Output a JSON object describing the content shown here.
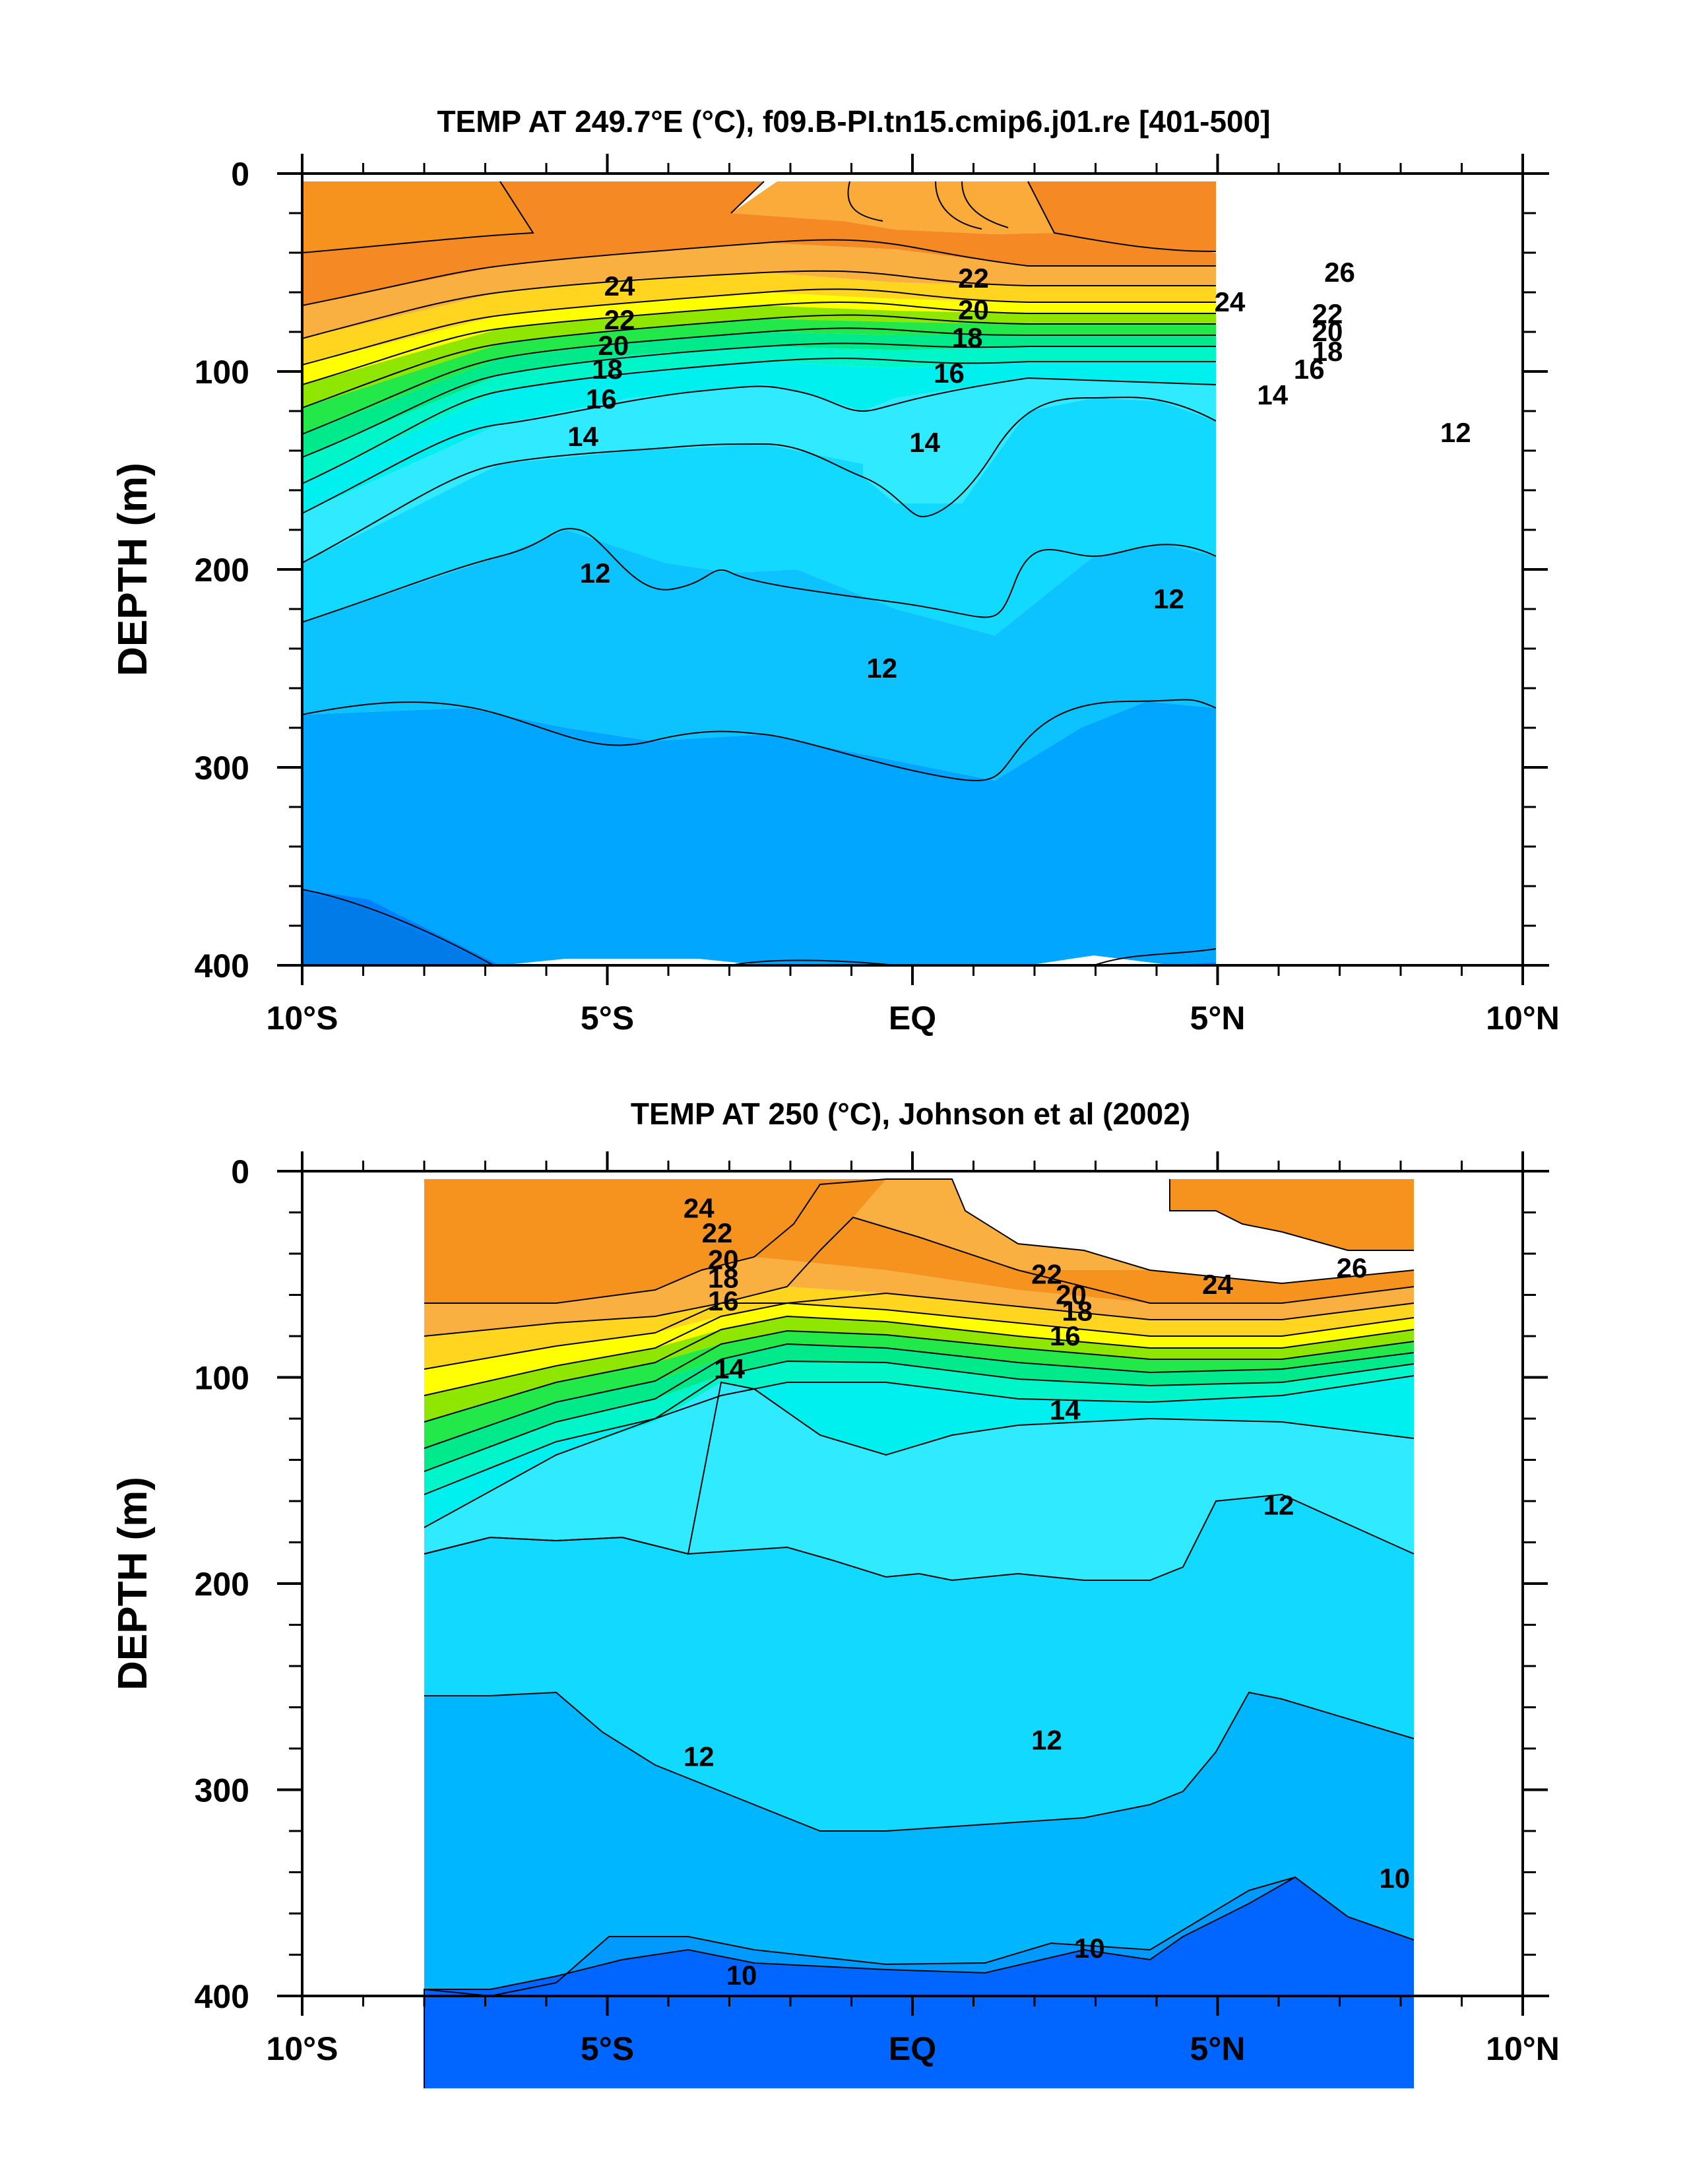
{
  "chart_data": [
    {
      "type": "heatmap",
      "title": "TEMP AT 249.7°E (°C), f09.B-PI.tn15.cmip6.j01.re [401-500]",
      "xlabel": "",
      "ylabel": "DEPTH (m)",
      "xlim": [
        -10,
        10
      ],
      "ylim": [
        400,
        0
      ],
      "x_ticks": [
        -10,
        -5,
        0,
        5,
        10
      ],
      "x_tick_labels": [
        "10°S",
        "5°S",
        "EQ",
        "5°N",
        "10°N"
      ],
      "y_ticks": [
        0,
        100,
        200,
        300,
        400
      ],
      "y_tick_labels": [
        "0",
        "100",
        "200",
        "300",
        "400"
      ],
      "contour_interval": 1,
      "grid": false,
      "isotherm_labels": [
        {
          "text": "24",
          "x": -4.8,
          "y": 57
        },
        {
          "text": "22",
          "x": -4.8,
          "y": 74
        },
        {
          "text": "20",
          "x": -4.9,
          "y": 87
        },
        {
          "text": "18",
          "x": -5.0,
          "y": 99
        },
        {
          "text": "16",
          "x": -5.1,
          "y": 114
        },
        {
          "text": "14",
          "x": -5.4,
          "y": 133
        },
        {
          "text": "22",
          "x": 1.0,
          "y": 53
        },
        {
          "text": "20",
          "x": 1.0,
          "y": 69
        },
        {
          "text": "18",
          "x": 0.9,
          "y": 83
        },
        {
          "text": "16",
          "x": 0.6,
          "y": 101
        },
        {
          "text": "14",
          "x": 0.2,
          "y": 136
        },
        {
          "text": "26",
          "x": 7.0,
          "y": 50
        },
        {
          "text": "24",
          "x": 5.2,
          "y": 65
        },
        {
          "text": "22",
          "x": 6.8,
          "y": 71
        },
        {
          "text": "20",
          "x": 6.8,
          "y": 80
        },
        {
          "text": "18",
          "x": 6.8,
          "y": 90
        },
        {
          "text": "16",
          "x": 6.5,
          "y": 99
        },
        {
          "text": "14",
          "x": 5.9,
          "y": 112
        },
        {
          "text": "12",
          "x": 8.9,
          "y": 131
        },
        {
          "text": "12",
          "x": -5.2,
          "y": 202
        },
        {
          "text": "12",
          "x": -0.5,
          "y": 250
        },
        {
          "text": "12",
          "x": 4.2,
          "y": 215
        }
      ]
    },
    {
      "type": "heatmap",
      "title": "TEMP AT 250 (°C), Johnson et al (2002)",
      "xlabel": "",
      "ylabel": "DEPTH (m)",
      "xlim": [
        -10,
        10
      ],
      "ylim": [
        400,
        0
      ],
      "x_ticks": [
        -10,
        -5,
        0,
        5,
        10
      ],
      "x_tick_labels": [
        "10°S",
        "5°S",
        "EQ",
        "5°N",
        "10°N"
      ],
      "y_ticks": [
        0,
        100,
        200,
        300,
        400
      ],
      "y_tick_labels": [
        "0",
        "100",
        "200",
        "300",
        "400"
      ],
      "data_xlim": [
        -8,
        8.2
      ],
      "contour_interval": 1,
      "grid": false,
      "isotherm_labels": [
        {
          "text": "24",
          "x": -3.5,
          "y": 18
        },
        {
          "text": "22",
          "x": -3.2,
          "y": 30
        },
        {
          "text": "20",
          "x": -3.1,
          "y": 43
        },
        {
          "text": "18",
          "x": -3.1,
          "y": 52
        },
        {
          "text": "16",
          "x": -3.1,
          "y": 63
        },
        {
          "text": "14",
          "x": -3.0,
          "y": 96
        },
        {
          "text": "22",
          "x": 2.2,
          "y": 50
        },
        {
          "text": "20",
          "x": 2.6,
          "y": 60
        },
        {
          "text": "18",
          "x": 2.7,
          "y": 68
        },
        {
          "text": "16",
          "x": 2.5,
          "y": 80
        },
        {
          "text": "14",
          "x": 2.5,
          "y": 116
        },
        {
          "text": "24",
          "x": 5.0,
          "y": 55
        },
        {
          "text": "26",
          "x": 7.2,
          "y": 47
        },
        {
          "text": "12",
          "x": 6.0,
          "y": 162
        },
        {
          "text": "12",
          "x": -3.5,
          "y": 284
        },
        {
          "text": "12",
          "x": 2.2,
          "y": 276
        },
        {
          "text": "10",
          "x": -2.8,
          "y": 390
        },
        {
          "text": "10",
          "x": 2.9,
          "y": 377
        },
        {
          "text": "10",
          "x": 7.9,
          "y": 343
        }
      ]
    }
  ]
}
